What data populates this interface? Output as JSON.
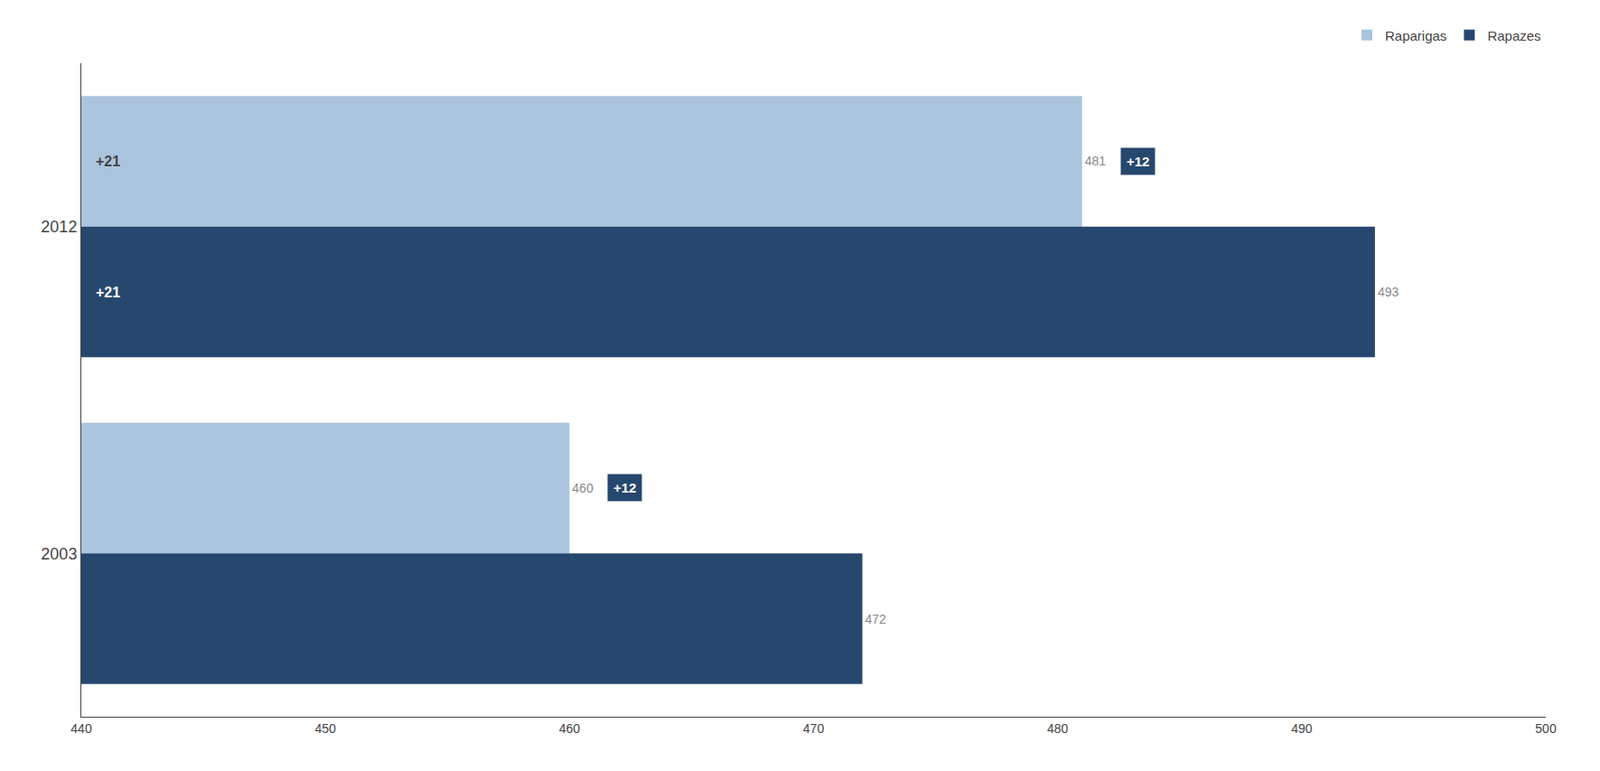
{
  "chart_data": {
    "type": "bar",
    "orientation": "horizontal",
    "categories": [
      "2012",
      "2003"
    ],
    "series": [
      {
        "name": "Raparigas",
        "color": "#aac4de",
        "values": [
          481,
          460
        ]
      },
      {
        "name": "Rapazes",
        "color": "#26486e",
        "values": [
          493,
          472
        ]
      }
    ],
    "xlim": [
      440,
      500
    ],
    "xticks": [
      440,
      450,
      460,
      470,
      480,
      490,
      500
    ],
    "grid": false,
    "legend": "upper right",
    "data_labels": true,
    "annotations": [
      {
        "text": "+21",
        "category": "2012",
        "series": "Raparigas"
      },
      {
        "text": "+21",
        "category": "2012",
        "series": "Rapazes"
      },
      {
        "text": "+12",
        "category": "2012",
        "series": "Raparigas",
        "color": "#26486e"
      },
      {
        "text": "+12",
        "category": "2003",
        "series": "Raparigas",
        "color": "#26486e"
      }
    ]
  }
}
